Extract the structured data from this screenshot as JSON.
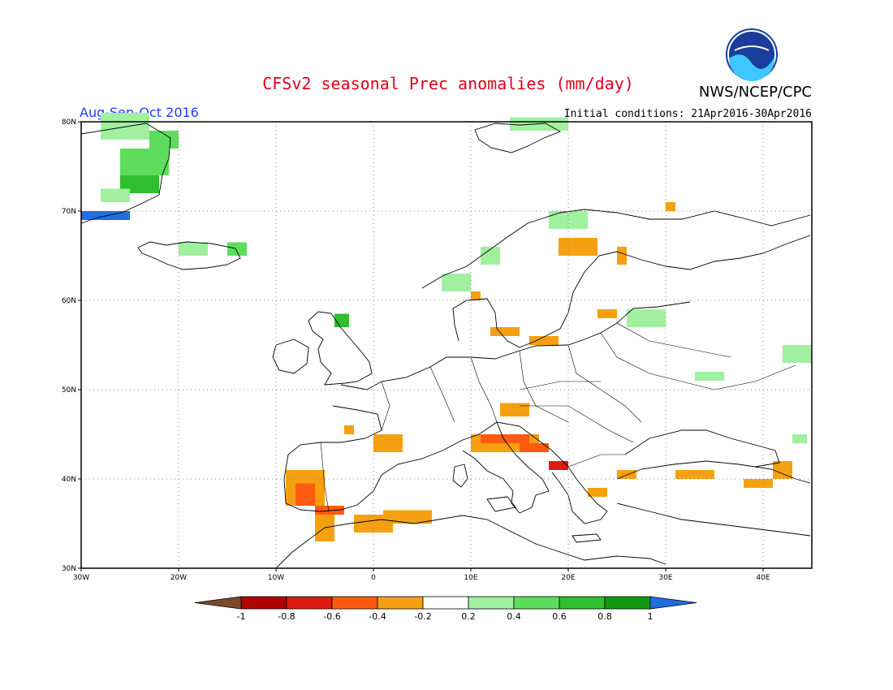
{
  "title": "CFSv2 seasonal Prec anomalies (mm/day)",
  "season": "Aug-Sep-Oct 2016",
  "initial_conditions": "Initial conditions: 21Apr2016-30Apr2016",
  "agency": "NWS/NCEP/CPC",
  "logo_text": "NOAA",
  "colors": {
    "title": "#e0001c",
    "season": "#1e3cff",
    "border": "#000000",
    "grid": "#888888"
  },
  "axes": {
    "lon_range": [
      -30,
      45
    ],
    "lat_range": [
      30,
      80
    ],
    "x_ticks": [
      {
        "value": -30,
        "label": "30W"
      },
      {
        "value": -20,
        "label": "20W"
      },
      {
        "value": -10,
        "label": "10W"
      },
      {
        "value": 0,
        "label": "0"
      },
      {
        "value": 10,
        "label": "10E"
      },
      {
        "value": 20,
        "label": "20E"
      },
      {
        "value": 30,
        "label": "30E"
      },
      {
        "value": 40,
        "label": "40E"
      }
    ],
    "y_ticks": [
      {
        "value": 30,
        "label": "30N"
      },
      {
        "value": 40,
        "label": "40N"
      },
      {
        "value": 50,
        "label": "50N"
      },
      {
        "value": 60,
        "label": "60N"
      },
      {
        "value": 70,
        "label": "70N"
      },
      {
        "value": 80,
        "label": "80N"
      }
    ],
    "grid": true
  },
  "colorbar": {
    "labels": [
      "-1",
      "-0.8",
      "-0.6",
      "-0.4",
      "-0.2",
      "0.2",
      "0.4",
      "0.6",
      "0.8",
      "1"
    ],
    "low_color": "#7a4a2a",
    "high_color": "#1f6fe0",
    "bins": [
      "#b00000",
      "#dd1a10",
      "#ff5a10",
      "#f5a010",
      "#ffffff",
      "#a0f0a0",
      "#5ddc5d",
      "#2fbf2f",
      "#129a12"
    ]
  },
  "chart_data": {
    "type": "heatmap",
    "cells": [
      {
        "lon": -28,
        "lat": 78,
        "w": 5,
        "h": 3,
        "v": 0.3
      },
      {
        "lon": -23,
        "lat": 77,
        "w": 3,
        "h": 2,
        "v": 0.5
      },
      {
        "lon": -26,
        "lat": 74,
        "w": 5,
        "h": 3,
        "v": 0.4
      },
      {
        "lon": -26,
        "lat": 72,
        "w": 4,
        "h": 2,
        "v": 0.6
      },
      {
        "lon": -28,
        "lat": 71,
        "w": 3,
        "h": 1.5,
        "v": 0.3
      },
      {
        "lon": -30,
        "lat": 69,
        "w": 5,
        "h": 1,
        "v": 1.1
      },
      {
        "lon": -20,
        "lat": 65,
        "w": 3,
        "h": 1.5,
        "v": 0.3
      },
      {
        "lon": -15,
        "lat": 65,
        "w": 2,
        "h": 1.5,
        "v": 0.4
      },
      {
        "lon": -4,
        "lat": 57,
        "w": 1.5,
        "h": 1.5,
        "v": 0.6
      },
      {
        "lon": 7,
        "lat": 61,
        "w": 3,
        "h": 2,
        "v": 0.3
      },
      {
        "lon": 11,
        "lat": 64,
        "w": 2,
        "h": 2,
        "v": 0.3
      },
      {
        "lon": 18,
        "lat": 68,
        "w": 4,
        "h": 2,
        "v": 0.3
      },
      {
        "lon": 14,
        "lat": 79,
        "w": 6,
        "h": 1.5,
        "v": 0.3
      },
      {
        "lon": 26,
        "lat": 57,
        "w": 4,
        "h": 2,
        "v": 0.3
      },
      {
        "lon": 33,
        "lat": 51,
        "w": 3,
        "h": 1,
        "v": 0.3
      },
      {
        "lon": 42,
        "lat": 53,
        "w": 3,
        "h": 2,
        "v": 0.3
      },
      {
        "lon": 19,
        "lat": 41,
        "w": 1,
        "h": 1,
        "v": 0.3
      },
      {
        "lon": 43,
        "lat": 44,
        "w": 1.5,
        "h": 1,
        "v": 0.3
      },
      {
        "lon": 19,
        "lat": 65,
        "w": 4,
        "h": 2,
        "v": -0.3
      },
      {
        "lon": 25,
        "lat": 64,
        "w": 1,
        "h": 2,
        "v": -0.3
      },
      {
        "lon": 23,
        "lat": 58,
        "w": 2,
        "h": 1,
        "v": -0.3
      },
      {
        "lon": 12,
        "lat": 56,
        "w": 3,
        "h": 1,
        "v": -0.3
      },
      {
        "lon": 16,
        "lat": 55,
        "w": 3,
        "h": 1,
        "v": -0.3
      },
      {
        "lon": 10,
        "lat": 60,
        "w": 1,
        "h": 1,
        "v": -0.3
      },
      {
        "lon": 13,
        "lat": 47,
        "w": 3,
        "h": 1.5,
        "v": -0.3
      },
      {
        "lon": 10,
        "lat": 43,
        "w": 7,
        "h": 2,
        "v": -0.3
      },
      {
        "lon": 11,
        "lat": 44,
        "w": 5,
        "h": 1,
        "v": -0.6
      },
      {
        "lon": 15,
        "lat": 43,
        "w": 3,
        "h": 1,
        "v": -0.6
      },
      {
        "lon": 18,
        "lat": 41,
        "w": 2,
        "h": 1,
        "v": -0.8
      },
      {
        "lon": 0,
        "lat": 43,
        "w": 3,
        "h": 2,
        "v": -0.3
      },
      {
        "lon": -3,
        "lat": 45,
        "w": 1,
        "h": 1,
        "v": -0.3
      },
      {
        "lon": -9,
        "lat": 37,
        "w": 4,
        "h": 4,
        "v": -0.3
      },
      {
        "lon": -8,
        "lat": 37,
        "w": 2,
        "h": 2.5,
        "v": -0.6
      },
      {
        "lon": -6,
        "lat": 36,
        "w": 3,
        "h": 1,
        "v": -0.6
      },
      {
        "lon": -6,
        "lat": 33,
        "w": 2,
        "h": 3,
        "v": -0.3
      },
      {
        "lon": -2,
        "lat": 34,
        "w": 4,
        "h": 2,
        "v": -0.3
      },
      {
        "lon": 1,
        "lat": 35,
        "w": 5,
        "h": 1.5,
        "v": -0.3
      },
      {
        "lon": 22,
        "lat": 38,
        "w": 2,
        "h": 1,
        "v": -0.3
      },
      {
        "lon": 25,
        "lat": 40,
        "w": 2,
        "h": 1,
        "v": -0.3
      },
      {
        "lon": 31,
        "lat": 40,
        "w": 4,
        "h": 1,
        "v": -0.3
      },
      {
        "lon": 38,
        "lat": 39,
        "w": 3,
        "h": 1,
        "v": -0.3
      },
      {
        "lon": 41,
        "lat": 40,
        "w": 2,
        "h": 2,
        "v": -0.3
      },
      {
        "lon": 30,
        "lat": 70,
        "w": 1,
        "h": 1,
        "v": -0.3
      }
    ]
  }
}
